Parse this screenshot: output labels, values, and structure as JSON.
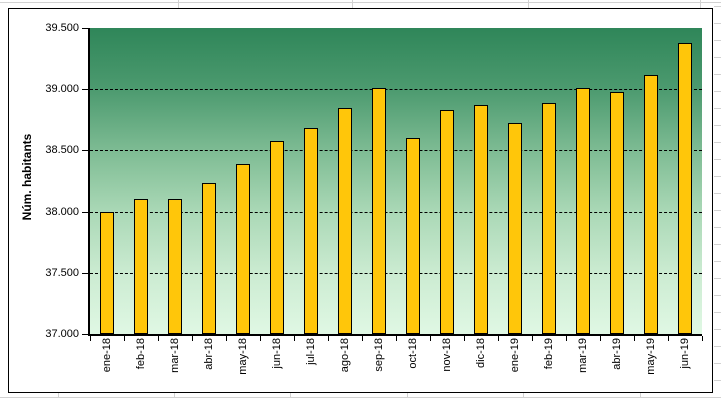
{
  "chart_data": {
    "type": "bar",
    "title": "",
    "xlabel": "",
    "ylabel": "Núm. habitants",
    "categories": [
      "ene-18",
      "feb-18",
      "mar-18",
      "abr-18",
      "may-18",
      "jun-18",
      "jul-18",
      "ago-18",
      "sep-18",
      "oct-18",
      "nov-18",
      "dic-18",
      "ene-19",
      "feb-19",
      "mar-19",
      "abr-19",
      "may-19",
      "jun-19"
    ],
    "values": [
      38000,
      38100,
      38100,
      38230,
      38390,
      38580,
      38680,
      38850,
      39010,
      38600,
      38830,
      38870,
      38720,
      38890,
      39010,
      38980,
      39120,
      39380
    ],
    "ylim": [
      37000,
      39500
    ],
    "ytick_interval": 500,
    "ytick_labels": [
      "39.500",
      "39.000",
      "38.500",
      "38.000",
      "37.500",
      "37.000"
    ],
    "grid": true,
    "legend": false,
    "bar_color": "#FFC60A",
    "bar_border_color": "#000000",
    "plot_gradient_stops": [
      "#2F8659",
      "#4C9A6F",
      "#80BD95",
      "#AAD8B6",
      "#CBEBD1",
      "#E0F8E4"
    ],
    "axis_color": "#000000",
    "chart_background": "#FFFFFF"
  }
}
